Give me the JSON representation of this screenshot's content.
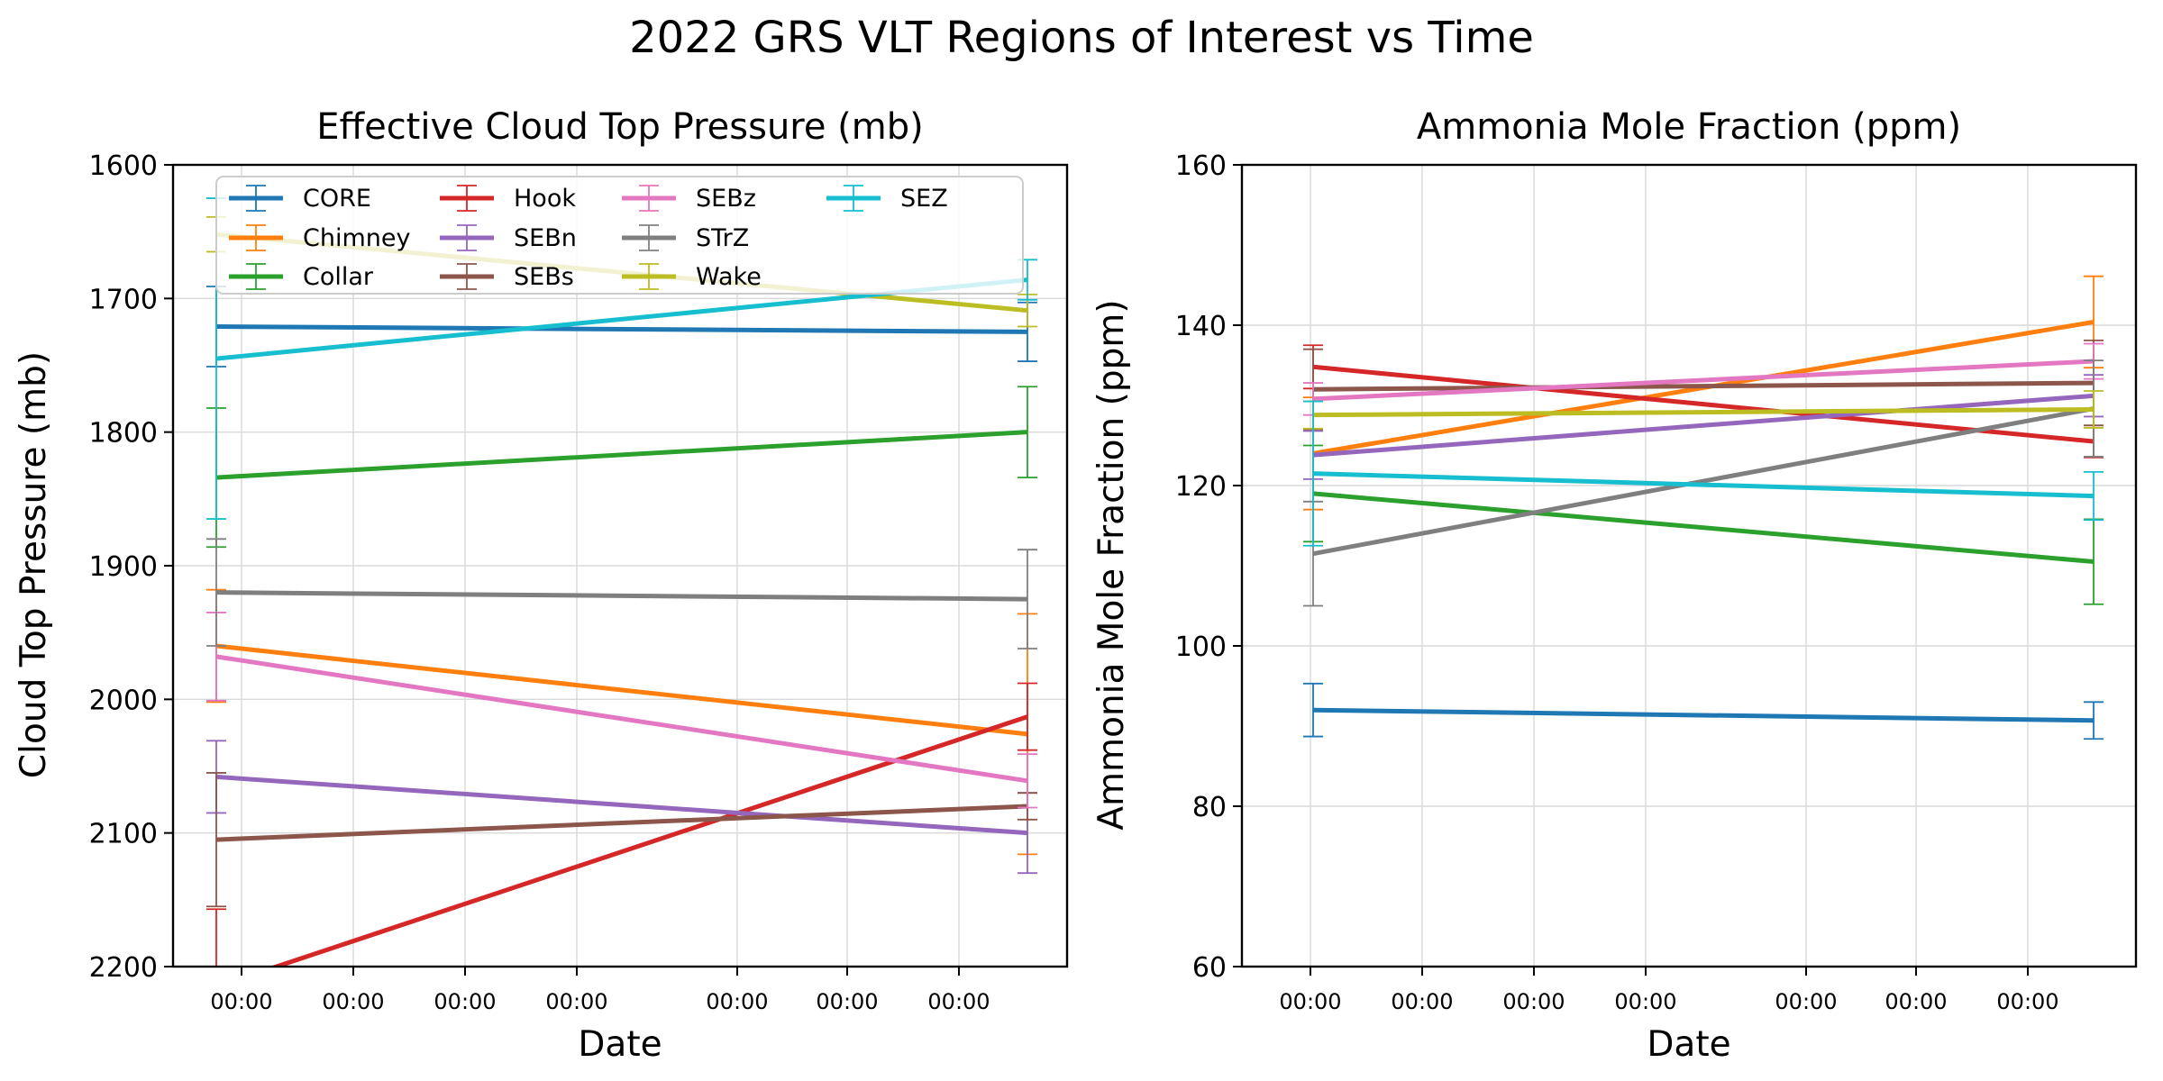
{
  "figure": {
    "suptitle": "2022 GRS VLT Regions of Interest vs Time"
  },
  "series_colors": {
    "CORE": "#1f77b4",
    "Chimney": "#ff7f0e",
    "Collar": "#2ca02c",
    "Hook": "#d62728",
    "SEBn": "#9467bd",
    "SEBs": "#8c564b",
    "SEBz": "#e377c2",
    "STrZ": "#7f7f7f",
    "Wake": "#bcbd22",
    "SEZ": "#17becf"
  },
  "chart_data": [
    {
      "type": "line",
      "title": "Effective Cloud Top Pressure (mb)",
      "xlabel": "Date",
      "ylabel": "Cloud Top Pressure (mb)",
      "ylim": [
        2200,
        1600
      ],
      "y_inverted": true,
      "yticks": [
        1600,
        1700,
        1800,
        1900,
        2000,
        2100,
        2200
      ],
      "xtick_labels": [
        "00:00",
        "00:00",
        "00:00",
        "00:00",
        "00:00",
        "00:00",
        "00:00"
      ],
      "grid": true,
      "legend": {
        "placement": "top",
        "columns": 4
      },
      "series": [
        {
          "name": "CORE",
          "values": [
            1721,
            1725
          ],
          "errors": [
            30,
            22
          ]
        },
        {
          "name": "Chimney",
          "values": [
            1960,
            2026
          ],
          "errors": [
            42,
            90
          ]
        },
        {
          "name": "Collar",
          "values": [
            1834,
            1800
          ],
          "errors": [
            52,
            34
          ]
        },
        {
          "name": "Hook",
          "values": [
            2215,
            2013
          ],
          "errors": [
            58,
            25
          ]
        },
        {
          "name": "SEBn",
          "values": [
            2058,
            2100
          ],
          "errors": [
            27,
            30
          ]
        },
        {
          "name": "SEBs",
          "values": [
            2105,
            2080
          ],
          "errors": [
            50,
            10
          ]
        },
        {
          "name": "SEBz",
          "values": [
            1968,
            2061
          ],
          "errors": [
            33,
            20
          ]
        },
        {
          "name": "STrZ",
          "values": [
            1920,
            1925
          ],
          "errors": [
            40,
            37
          ]
        },
        {
          "name": "Wake",
          "values": [
            1652,
            1709
          ],
          "errors": [
            13,
            12
          ]
        },
        {
          "name": "SEZ",
          "values": [
            1745,
            1686
          ],
          "errors": [
            120,
            15
          ]
        }
      ]
    },
    {
      "type": "line",
      "title": "Ammonia Mole Fraction (ppm)",
      "xlabel": "Date",
      "ylabel": "Ammonia Mole Fraction (ppm)",
      "ylim": [
        60,
        160
      ],
      "yticks": [
        60,
        80,
        100,
        120,
        140,
        160
      ],
      "xtick_labels": [
        "00:00",
        "00:00",
        "00:00",
        "00:00",
        "00:00",
        "00:00",
        "00:00"
      ],
      "grid": true,
      "series": [
        {
          "name": "CORE",
          "values": [
            92,
            90.7
          ],
          "errors": [
            3.3,
            2.3
          ]
        },
        {
          "name": "Chimney",
          "values": [
            124,
            140.4
          ],
          "errors": [
            7,
            5.7
          ]
        },
        {
          "name": "Collar",
          "values": [
            119,
            110.5
          ],
          "errors": [
            6,
            5.3
          ]
        },
        {
          "name": "Hook",
          "values": [
            134.8,
            125.5
          ],
          "errors": [
            2.7,
            2
          ]
        },
        {
          "name": "SEBn",
          "values": [
            123.8,
            131.2
          ],
          "errors": [
            3,
            2.6
          ]
        },
        {
          "name": "SEBs",
          "values": [
            132,
            132.8
          ],
          "errors": [
            5,
            5.3
          ]
        },
        {
          "name": "SEBz",
          "values": [
            130.8,
            135.5
          ],
          "errors": [
            2,
            2.2
          ]
        },
        {
          "name": "STrZ",
          "values": [
            111.5,
            129.6
          ],
          "errors": [
            6.5,
            6
          ]
        },
        {
          "name": "Wake",
          "values": [
            128.8,
            129.5
          ],
          "errors": [
            1.7,
            2.3
          ]
        },
        {
          "name": "SEZ",
          "values": [
            121.5,
            118.7
          ],
          "errors": [
            9,
            3
          ]
        }
      ]
    }
  ]
}
